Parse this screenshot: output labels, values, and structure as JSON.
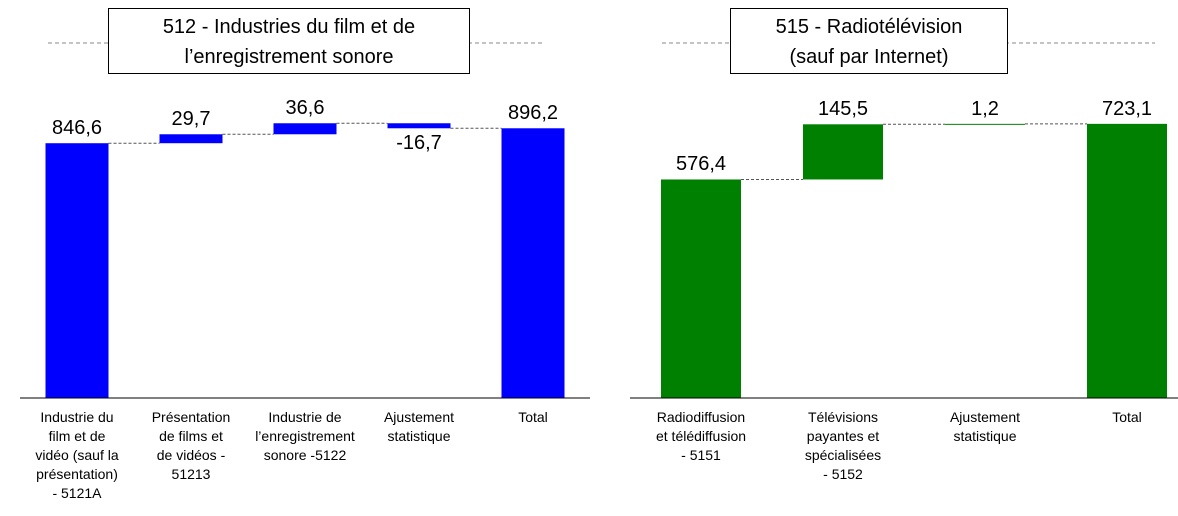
{
  "chart_data": [
    {
      "type": "waterfall",
      "title": "512 - Industries du film et de\nl’enregistrement sonore",
      "categories": [
        "Industrie du\nfilm et de\nvidéo (sauf la\nprésentation)\n- 5121A",
        "Présentation\nde films et\nde vidéos -\n51213",
        "Industrie de\nl’enregistrement\nsonore -5122",
        "Ajustement\nstatistique",
        "Total"
      ],
      "measure": [
        "absolute",
        "relative",
        "relative",
        "relative",
        "total"
      ],
      "values": [
        846.6,
        29.7,
        36.6,
        -16.7,
        896.2
      ],
      "value_labels": [
        "846,6",
        "29,7",
        "36,6",
        "-16,7",
        "896,2"
      ],
      "color": "#0000ff",
      "ylim": [
        0,
        1256
      ]
    },
    {
      "type": "waterfall",
      "title": "515 - Radiotélévision\n(sauf par Internet)",
      "categories": [
        "Radiodiffusion\net télédiffusion\n- 5151",
        "Télévisions\npayantes et\nspécialisées\n- 5152",
        "Ajustement\nstatistique",
        "Total"
      ],
      "measure": [
        "absolute",
        "relative",
        "relative",
        "total"
      ],
      "values": [
        576.4,
        145.5,
        1.2,
        723.1
      ],
      "value_labels": [
        "576,4",
        "145,5",
        "1,2",
        "723,1"
      ],
      "color": "#008000",
      "ylim": [
        0,
        997
      ]
    }
  ]
}
